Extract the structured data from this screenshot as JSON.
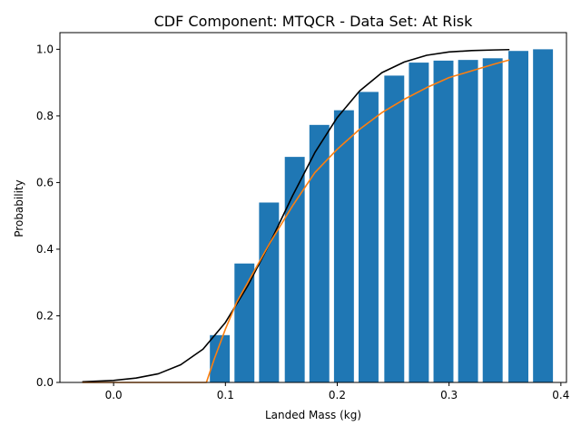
{
  "chart_data": {
    "type": "bar",
    "title": "CDF Component: MTQCR - Data Set: At Risk",
    "xlabel": "Landed Mass (kg)",
    "ylabel": "Probability",
    "xlim": [
      -0.048,
      0.405
    ],
    "ylim": [
      0,
      1.05
    ],
    "x_ticks": [
      0.0,
      0.1,
      0.2,
      0.3,
      0.4
    ],
    "x_tick_labels": [
      "0.0",
      "0.1",
      "0.2",
      "0.3",
      "0.4"
    ],
    "y_ticks": [
      0.0,
      0.2,
      0.4,
      0.6,
      0.8,
      1.0
    ],
    "y_tick_labels": [
      "0.0",
      "0.2",
      "0.4",
      "0.6",
      "0.8",
      "1.0"
    ],
    "grid": false,
    "bar_width": 0.0178,
    "bars": {
      "color": "#1f77b4",
      "x": [
        0.095,
        0.117,
        0.139,
        0.162,
        0.184,
        0.206,
        0.228,
        0.251,
        0.273,
        0.295,
        0.317,
        0.339,
        0.362,
        0.384
      ],
      "values": [
        0.142,
        0.357,
        0.54,
        0.677,
        0.773,
        0.817,
        0.872,
        0.921,
        0.96,
        0.966,
        0.968,
        0.973,
        0.995,
        1.0
      ]
    },
    "series": [
      {
        "type": "line",
        "color": "#000000",
        "x": [
          -0.028,
          0.0,
          0.02,
          0.04,
          0.06,
          0.08,
          0.1,
          0.12,
          0.14,
          0.16,
          0.18,
          0.2,
          0.22,
          0.24,
          0.26,
          0.28,
          0.3,
          0.32,
          0.34,
          0.354
        ],
        "values": [
          0.002,
          0.006,
          0.013,
          0.026,
          0.053,
          0.1,
          0.18,
          0.29,
          0.42,
          0.56,
          0.69,
          0.795,
          0.875,
          0.93,
          0.962,
          0.982,
          0.992,
          0.996,
          0.998,
          0.999
        ]
      },
      {
        "type": "line",
        "color": "#ff7f0e",
        "x": [
          -0.028,
          0.0,
          0.04,
          0.083,
          0.09,
          0.1,
          0.11,
          0.12,
          0.14,
          0.16,
          0.18,
          0.2,
          0.22,
          0.24,
          0.26,
          0.28,
          0.3,
          0.32,
          0.34,
          0.354
        ],
        "values": [
          0.0,
          0.0,
          0.0,
          0.0,
          0.07,
          0.16,
          0.24,
          0.3,
          0.42,
          0.53,
          0.63,
          0.7,
          0.76,
          0.81,
          0.85,
          0.885,
          0.915,
          0.935,
          0.955,
          0.968
        ]
      }
    ]
  }
}
